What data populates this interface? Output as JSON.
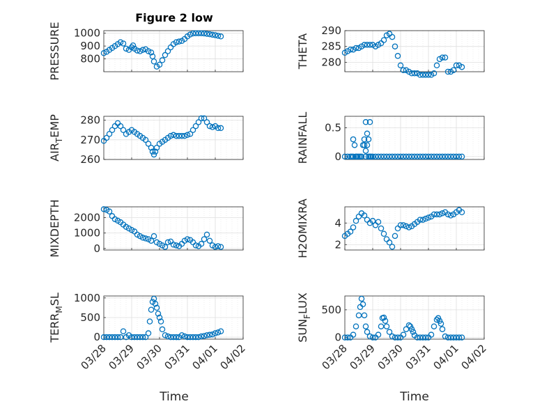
{
  "title": "Figure 2 low",
  "xlabel": "Time",
  "x_tick_labels": [
    "03/28",
    "03/29",
    "03/30",
    "03/31",
    "04/01",
    "04/02"
  ],
  "marker_color": "#0072BD",
  "chart_data": [
    {
      "type": "scatter",
      "name": "pressure",
      "ylabel_parts": [
        "PRESSURE"
      ],
      "ylim": [
        700,
        1020
      ],
      "yticks": [
        800,
        900,
        1000
      ],
      "ytick_labels": [
        "800",
        "900",
        "1000"
      ],
      "xlim": [
        0,
        5
      ],
      "grid": true,
      "x": [
        0,
        0.1,
        0.2,
        0.3,
        0.4,
        0.5,
        0.6,
        0.7,
        0.8,
        0.9,
        1.0,
        1.05,
        1.1,
        1.2,
        1.3,
        1.4,
        1.5,
        1.6,
        1.7,
        1.75,
        1.8,
        1.9,
        2.0,
        2.1,
        2.2,
        2.3,
        2.4,
        2.5,
        2.6,
        2.7,
        2.8,
        2.9,
        3.0,
        3.1,
        3.2,
        3.3,
        3.4,
        3.5,
        3.6,
        3.7,
        3.8,
        3.9,
        4.0,
        4.1,
        4.2
      ],
      "y": [
        845,
        855,
        870,
        885,
        900,
        915,
        930,
        920,
        880,
        870,
        890,
        905,
        880,
        865,
        860,
        870,
        875,
        860,
        850,
        820,
        780,
        740,
        755,
        790,
        830,
        860,
        890,
        915,
        930,
        935,
        940,
        955,
        975,
        990,
        998,
        1000,
        1000,
        1000,
        998,
        995,
        992,
        988,
        985,
        980,
        975
      ]
    },
    {
      "type": "scatter",
      "name": "theta",
      "ylabel_parts": [
        "THETA"
      ],
      "ylim": [
        277,
        290
      ],
      "yticks": [
        280,
        285,
        290
      ],
      "ytick_labels": [
        "280",
        "285",
        "290"
      ],
      "xlim": [
        0,
        5
      ],
      "grid": true,
      "x": [
        0,
        0.1,
        0.2,
        0.3,
        0.4,
        0.5,
        0.6,
        0.7,
        0.8,
        0.9,
        1.0,
        1.1,
        1.2,
        1.3,
        1.4,
        1.5,
        1.6,
        1.7,
        1.8,
        1.9,
        2.0,
        2.1,
        2.2,
        2.3,
        2.4,
        2.5,
        2.6,
        2.7,
        2.8,
        2.9,
        3.0,
        3.1,
        3.2,
        3.3,
        3.4,
        3.5,
        3.6,
        3.7,
        3.8,
        3.9,
        4.0,
        4.1,
        4.2
      ],
      "y": [
        283,
        283.5,
        284,
        284,
        284.5,
        284.5,
        285,
        285.5,
        285.5,
        285.5,
        285.5,
        285,
        285.5,
        286,
        287,
        288.5,
        289,
        288,
        285,
        282,
        279,
        277.5,
        277.5,
        277,
        276.5,
        276.5,
        276.5,
        276,
        276,
        276,
        276,
        276,
        276.5,
        279,
        281,
        281.5,
        281.5,
        277,
        277,
        277.5,
        279,
        279,
        278.5
      ]
    },
    {
      "type": "scatter",
      "name": "air-temp",
      "ylabel_parts": [
        "AIR",
        "T",
        "EMP"
      ],
      "ylim": [
        260,
        282
      ],
      "yticks": [
        260,
        270,
        280
      ],
      "ytick_labels": [
        "260",
        "270",
        "280"
      ],
      "xlim": [
        0,
        5
      ],
      "grid": true,
      "x": [
        0,
        0.1,
        0.2,
        0.3,
        0.4,
        0.5,
        0.6,
        0.7,
        0.8,
        0.9,
        1.0,
        1.1,
        1.2,
        1.3,
        1.4,
        1.5,
        1.6,
        1.7,
        1.75,
        1.8,
        1.85,
        1.9,
        2.0,
        2.1,
        2.2,
        2.3,
        2.4,
        2.5,
        2.6,
        2.7,
        2.8,
        2.9,
        3.0,
        3.1,
        3.2,
        3.3,
        3.4,
        3.5,
        3.6,
        3.7,
        3.8,
        3.9,
        4.0,
        4.1,
        4.2
      ],
      "y": [
        269.5,
        271,
        273,
        275,
        277,
        278.5,
        277,
        275,
        273,
        274,
        275,
        274,
        273,
        272,
        271,
        270,
        268,
        266,
        264,
        262.5,
        264,
        266,
        268,
        269,
        270,
        271,
        272,
        272.5,
        272,
        272,
        272,
        272,
        272.5,
        273,
        275,
        277,
        279,
        281,
        281,
        279,
        277,
        276.5,
        277,
        276,
        276
      ]
    },
    {
      "type": "scatter",
      "name": "rainfall",
      "ylabel_parts": [
        "RAINFALL"
      ],
      "ylim": [
        -0.05,
        0.7
      ],
      "yticks": [
        0,
        0.5
      ],
      "ytick_labels": [
        "0",
        "0.5"
      ],
      "xlim": [
        0,
        5
      ],
      "grid": true,
      "x": [
        0,
        0.1,
        0.2,
        0.25,
        0.3,
        0.35,
        0.4,
        0.45,
        0.5,
        0.55,
        0.6,
        0.65,
        0.7,
        0.75,
        0.8,
        0.85,
        0.9,
        0.95,
        1.0,
        1.1,
        1.2,
        1.3,
        1.4,
        1.5,
        1.6,
        1.7,
        1.8,
        1.9,
        2.0,
        2.1,
        2.2,
        2.3,
        2.4,
        2.5,
        2.6,
        2.7,
        2.8,
        2.9,
        3.0,
        3.1,
        3.2,
        3.3,
        3.4,
        3.5,
        3.6,
        3.7,
        3.8,
        3.9,
        4.0,
        4.1,
        4.2,
        0.3,
        0.4,
        0.7,
        0.75,
        0.8,
        0.85,
        0.9,
        0.75,
        0.9
      ],
      "y": [
        0,
        0,
        0,
        0,
        0.3,
        0.2,
        0,
        0,
        0,
        0,
        0,
        0.2,
        0.3,
        0.6,
        0.4,
        0.3,
        0.6,
        0,
        0,
        0,
        0,
        0,
        0,
        0,
        0,
        0,
        0,
        0,
        0,
        0,
        0,
        0,
        0,
        0,
        0,
        0,
        0,
        0,
        0,
        0,
        0,
        0,
        0,
        0,
        0,
        0,
        0,
        0,
        0,
        0,
        0,
        0,
        0,
        0.2,
        0.1,
        0.2,
        0,
        0,
        0,
        0
      ]
    },
    {
      "type": "scatter",
      "name": "mixdepth",
      "ylabel_parts": [
        "MIXDEPTH"
      ],
      "ylim": [
        -100,
        2700
      ],
      "yticks": [
        0,
        1000,
        2000
      ],
      "ytick_labels": [
        "0",
        "1000",
        "2000"
      ],
      "xlim": [
        0,
        5
      ],
      "grid": true,
      "x": [
        0,
        0.1,
        0.2,
        0.3,
        0.4,
        0.5,
        0.6,
        0.7,
        0.8,
        0.9,
        1.0,
        1.1,
        1.2,
        1.3,
        1.4,
        1.5,
        1.6,
        1.7,
        1.8,
        1.9,
        2.0,
        2.1,
        2.2,
        2.3,
        2.4,
        2.5,
        2.6,
        2.7,
        2.8,
        2.9,
        3.0,
        3.1,
        3.2,
        3.3,
        3.4,
        3.5,
        3.6,
        3.7,
        3.8,
        3.9,
        4.0,
        4.1,
        4.2
      ],
      "y": [
        2550,
        2500,
        2400,
        2100,
        1900,
        1800,
        1700,
        1550,
        1400,
        1300,
        1200,
        1100,
        900,
        800,
        700,
        650,
        600,
        500,
        800,
        400,
        300,
        200,
        100,
        400,
        450,
        250,
        200,
        150,
        300,
        500,
        600,
        550,
        400,
        200,
        150,
        300,
        600,
        900,
        500,
        200,
        100,
        150,
        100
      ]
    },
    {
      "type": "scatter",
      "name": "h2o-mixing-ratio",
      "ylabel_parts": [
        "H2OMIXRA"
      ],
      "ylim": [
        1.5,
        5.5
      ],
      "yticks": [
        2,
        4
      ],
      "ytick_labels": [
        "2",
        "4"
      ],
      "xlim": [
        0,
        5
      ],
      "grid": true,
      "x": [
        0,
        0.1,
        0.2,
        0.3,
        0.4,
        0.5,
        0.6,
        0.7,
        0.8,
        0.9,
        1.0,
        1.1,
        1.2,
        1.3,
        1.4,
        1.5,
        1.6,
        1.7,
        1.8,
        1.9,
        2.0,
        2.1,
        2.2,
        2.3,
        2.4,
        2.5,
        2.6,
        2.7,
        2.8,
        2.9,
        3.0,
        3.1,
        3.2,
        3.3,
        3.4,
        3.5,
        3.6,
        3.7,
        3.8,
        3.9,
        4.0,
        4.1,
        4.2
      ],
      "y": [
        2.8,
        3.0,
        3.2,
        3.6,
        4.2,
        4.6,
        4.9,
        4.7,
        4.3,
        4.0,
        4.2,
        3.8,
        4.1,
        3.5,
        3.0,
        2.5,
        2.2,
        1.8,
        2.8,
        3.5,
        3.8,
        3.8,
        3.7,
        3.6,
        3.7,
        3.9,
        4.1,
        4.3,
        4.3,
        4.4,
        4.5,
        4.6,
        4.8,
        4.8,
        4.8,
        4.9,
        5.0,
        4.8,
        4.7,
        4.8,
        5.0,
        5.2,
        5.0
      ]
    },
    {
      "type": "scatter",
      "name": "terrestrial-mean-sl",
      "ylabel_parts": [
        "TERR",
        "M",
        "SL"
      ],
      "ylim": [
        -50,
        1050
      ],
      "yticks": [
        0,
        500,
        1000
      ],
      "ytick_labels": [
        "0",
        "500",
        "1000"
      ],
      "xlim": [
        0,
        5
      ],
      "grid": true,
      "x": [
        0,
        0.1,
        0.2,
        0.3,
        0.4,
        0.5,
        0.6,
        0.7,
        0.8,
        0.9,
        1.0,
        1.1,
        1.2,
        1.3,
        1.4,
        1.5,
        1.6,
        1.65,
        1.7,
        1.75,
        1.8,
        1.85,
        1.9,
        1.95,
        2.0,
        2.05,
        2.1,
        2.2,
        2.3,
        2.4,
        2.5,
        2.6,
        2.7,
        2.8,
        2.9,
        3.0,
        3.1,
        3.2,
        3.3,
        3.4,
        3.5,
        3.6,
        3.7,
        3.8,
        3.9,
        4.0,
        4.1,
        4.2
      ],
      "y": [
        0,
        0,
        0,
        0,
        0,
        0,
        0,
        150,
        0,
        50,
        0,
        0,
        0,
        0,
        0,
        0,
        100,
        400,
        700,
        900,
        980,
        850,
        750,
        600,
        500,
        400,
        200,
        50,
        20,
        0,
        0,
        0,
        0,
        50,
        20,
        0,
        0,
        0,
        0,
        0,
        20,
        30,
        50,
        60,
        70,
        100,
        120,
        150
      ]
    },
    {
      "type": "scatter",
      "name": "sun-flux",
      "ylabel_parts": [
        "SUN",
        "F",
        "LUX"
      ],
      "ylim": [
        -30,
        750
      ],
      "yticks": [
        0,
        500
      ],
      "ytick_labels": [
        "0",
        "500"
      ],
      "xlim": [
        0,
        5
      ],
      "grid": true,
      "x": [
        0,
        0.1,
        0.2,
        0.3,
        0.4,
        0.5,
        0.55,
        0.6,
        0.65,
        0.7,
        0.75,
        0.8,
        0.9,
        1.0,
        1.1,
        1.2,
        1.3,
        1.35,
        1.4,
        1.45,
        1.5,
        1.6,
        1.7,
        1.8,
        1.9,
        2.0,
        2.1,
        2.2,
        2.3,
        2.35,
        2.4,
        2.45,
        2.5,
        2.6,
        2.7,
        2.8,
        2.9,
        3.0,
        3.1,
        3.2,
        3.3,
        3.35,
        3.4,
        3.45,
        3.5,
        3.6,
        3.7,
        3.8,
        3.9,
        4.0,
        4.1,
        4.2
      ],
      "y": [
        0,
        0,
        0,
        50,
        200,
        400,
        550,
        700,
        600,
        400,
        200,
        100,
        20,
        0,
        0,
        50,
        200,
        350,
        360,
        300,
        200,
        100,
        20,
        0,
        0,
        0,
        50,
        150,
        220,
        200,
        150,
        100,
        40,
        0,
        0,
        0,
        0,
        0,
        50,
        200,
        320,
        350,
        300,
        250,
        150,
        20,
        0,
        0,
        0,
        0,
        0,
        0
      ]
    }
  ]
}
